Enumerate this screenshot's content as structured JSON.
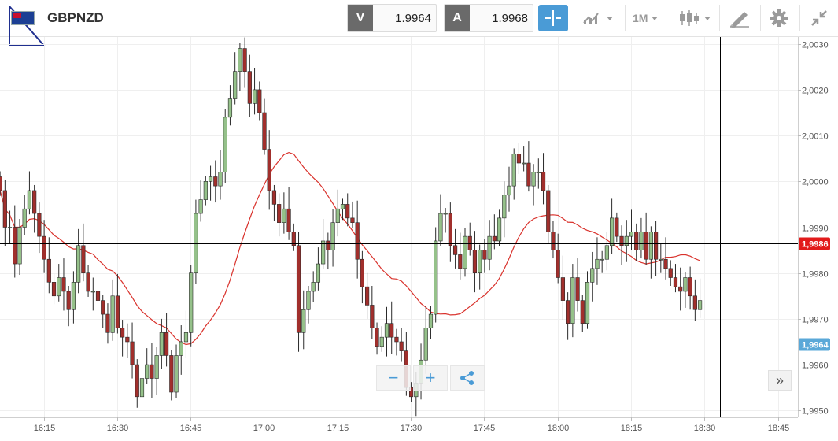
{
  "header": {
    "symbol": "GBPNZD",
    "bid_tag": "V",
    "bid_value": "1.9964",
    "ask_tag": "A",
    "ask_value": "1.9968",
    "timeframe": "1M"
  },
  "controls": {
    "zoom_out": "−",
    "zoom_in": "+",
    "forward": "»"
  },
  "chart_data": {
    "type": "candlestick",
    "y_ticks": [
      "2,0030",
      "2,0020",
      "2,0010",
      "2,0000",
      "1,9990",
      "1,9980",
      "1,9970",
      "1,9960",
      "1,9950"
    ],
    "x_ticks": [
      "16:15",
      "16:30",
      "16:45",
      "17:00",
      "17:15",
      "17:30",
      "17:45",
      "18:00",
      "18:15",
      "18:30",
      "18:45"
    ],
    "ylim": [
      1.99485,
      2.00315
    ],
    "crosshair": {
      "price": 1.99865,
      "price_label": "1,9986",
      "time": "18:34"
    },
    "last_price": {
      "price": 1.99644,
      "label": "1,9964"
    },
    "colors": {
      "up": "#95c18a",
      "down": "#a12f2c",
      "ma": "#d9322c",
      "crosshair_label": "#e21b1b",
      "last_label": "#5aa8d8"
    },
    "candles_close": [
      1.9998,
      1.999,
      1.999,
      1.9982,
      1.999,
      1.9994,
      1.9998,
      1.9993,
      1.9988,
      1.9983,
      1.9978,
      1.9975,
      1.9979,
      1.9976,
      1.9972,
      1.9978,
      1.9986,
      1.998,
      1.9976,
      1.9976,
      1.9974,
      1.9971,
      1.9967,
      1.9975,
      1.9968,
      1.9966,
      1.9965,
      1.996,
      1.9953,
      1.9957,
      1.996,
      1.9957,
      1.9962,
      1.9967,
      1.9962,
      1.9954,
      1.9962,
      1.9965,
      1.9967,
      1.998,
      1.9993,
      1.9996,
      2.0,
      2.0001,
      1.9999,
      2.0002,
      2.0014,
      2.0018,
      2.0024,
      2.0029,
      2.0024,
      2.0017,
      2.002,
      2.0015,
      2.0007,
      1.9998,
      1.9995,
      1.9991,
      1.9994,
      1.9989,
      1.9986,
      1.9967,
      1.9972,
      1.9976,
      1.9978,
      1.9982,
      1.9987,
      1.9985,
      1.9991,
      1.9994,
      1.9995,
      1.9992,
      1.9991,
      1.9983,
      1.9977,
      1.9973,
      1.9968,
      1.9964,
      1.9966,
      1.9969,
      1.9966,
      1.9965,
      1.9963,
      1.9955,
      1.9953,
      1.9956,
      1.9961,
      1.9968,
      1.9971,
      1.9987,
      1.9993,
      1.9993,
      1.9986,
      1.9984,
      1.9981,
      1.9988,
      1.9985,
      1.998,
      1.9985,
      1.9983,
      1.9988,
      1.9987,
      1.9992,
      1.9997,
      1.9999,
      2.0006,
      2.0004,
      2.0004,
      1.9999,
      2.0002,
      2.0002,
      1.9998,
      1.9989,
      1.9985,
      1.9979,
      1.9974,
      1.9969,
      1.9979,
      1.9974,
      1.9969,
      1.9978,
      1.9981,
      1.9983,
      1.9983,
      1.9986,
      1.9992,
      1.9988,
      1.9986,
      1.9988,
      1.9989,
      1.9985,
      1.9989,
      1.9983,
      1.9989,
      1.9983,
      1.9983,
      1.9981,
      1.9979,
      1.9977,
      1.9976,
      1.9979,
      1.9975,
      1.9972,
      1.9974
    ]
  }
}
